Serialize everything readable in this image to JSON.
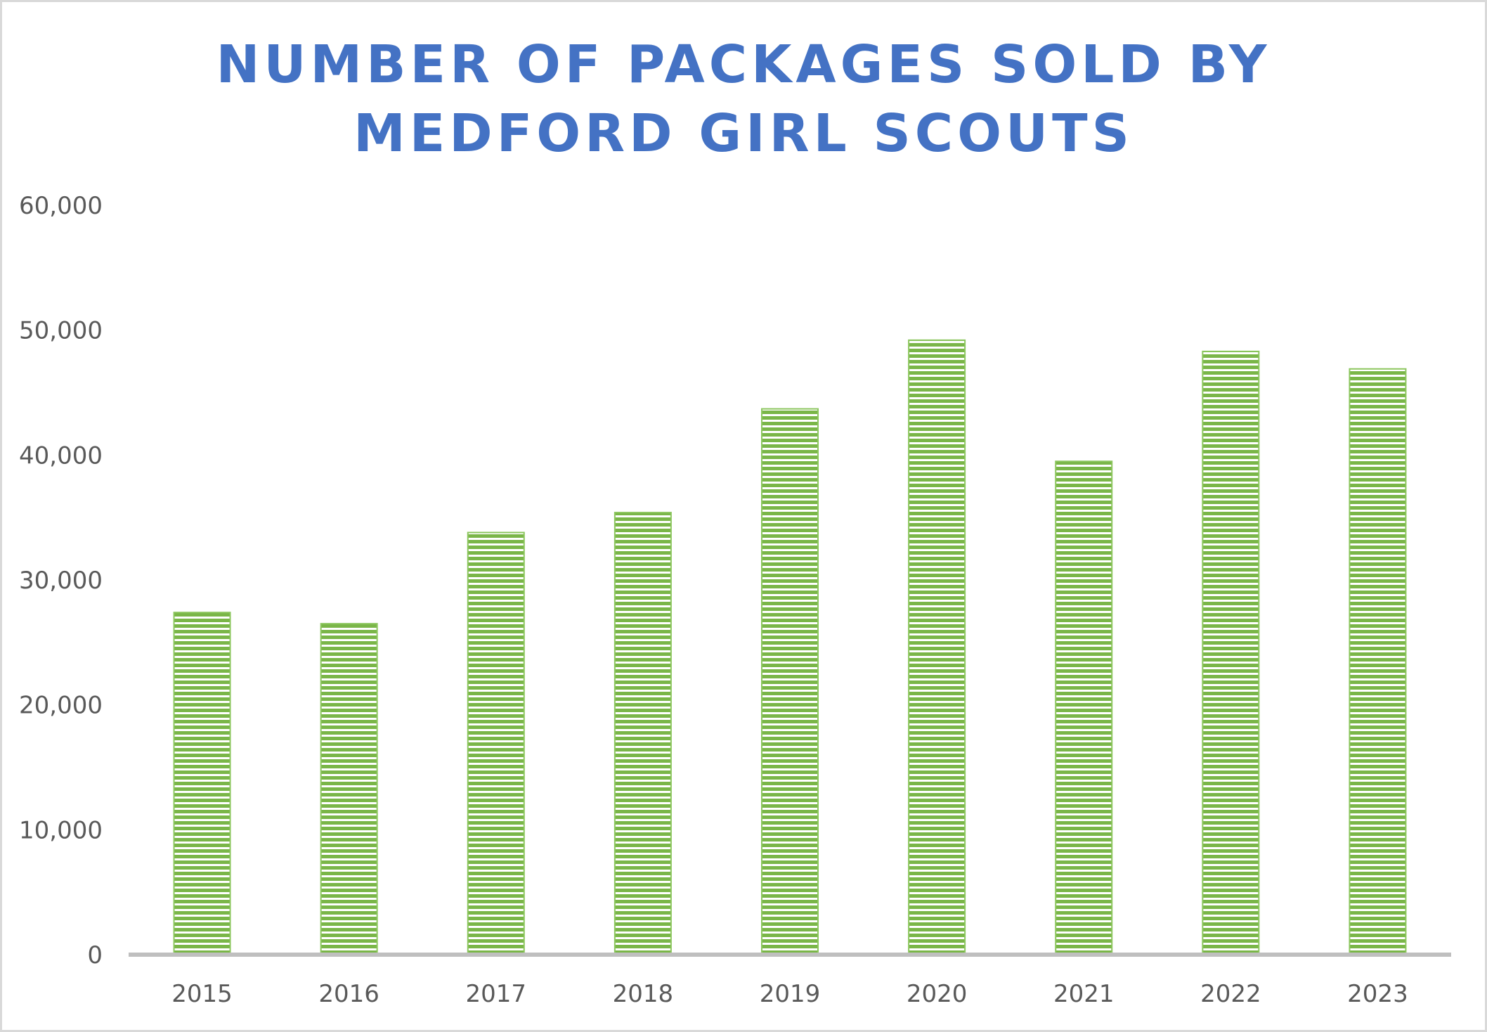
{
  "colors": {
    "title": "#4472c4",
    "bar_fill": "#ffffff",
    "bar_stripe": "#7ab648",
    "bar_edge": "#8cc65e",
    "axis_line": "#bfbfbf",
    "tick_text": "#595959"
  },
  "chart_data": {
    "type": "bar",
    "title_lines": [
      "NUMBER OF PACKAGES SOLD BY",
      "MEDFORD GIRL SCOUTS"
    ],
    "xlabel": "",
    "ylabel": "",
    "categories": [
      "2015",
      "2016",
      "2017",
      "2018",
      "2019",
      "2020",
      "2021",
      "2022",
      "2023"
    ],
    "values": [
      27400,
      26500,
      33800,
      35400,
      43700,
      49200,
      39500,
      48300,
      46900
    ],
    "ylim": [
      0,
      60000
    ],
    "y_ticks": [
      0,
      10000,
      20000,
      30000,
      40000,
      50000,
      60000
    ],
    "y_tick_labels": [
      "0",
      "10,000",
      "20,000",
      "30,000",
      "40,000",
      "50,000",
      "60,000"
    ],
    "grid": false,
    "legend": "none",
    "bar_pattern": "horizontal-stripes"
  }
}
